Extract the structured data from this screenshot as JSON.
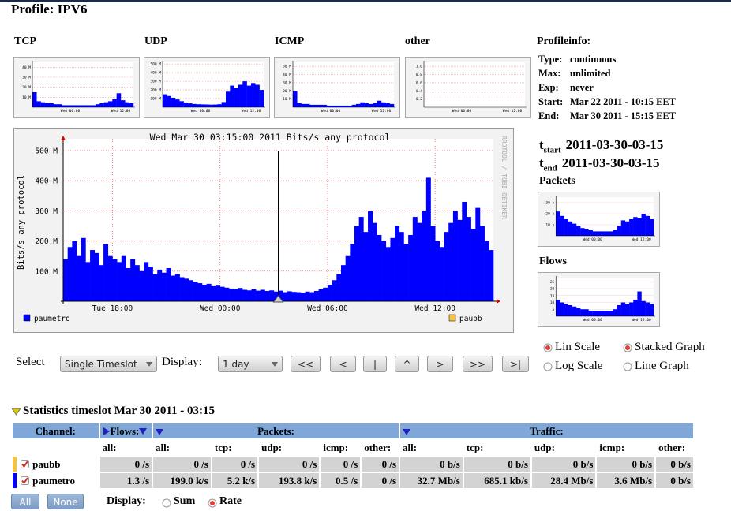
{
  "title": "Profile: IPV6",
  "thumbnails": [
    {
      "label": "TCP",
      "color": "#0000ff",
      "ylim": [
        0,
        45000000.0
      ],
      "yticks": [
        {
          "value": 10000000.0,
          "label": "10 M"
        },
        {
          "value": 20000000.0,
          "label": "20 M"
        },
        {
          "value": 30000000.0,
          "label": "30 M"
        },
        {
          "value": 40000000.0,
          "label": "40 M"
        }
      ],
      "categories": [
        null,
        null,
        null,
        null,
        null,
        null,
        null,
        null,
        null,
        "Wed 00:00",
        null,
        null,
        null,
        null,
        null,
        null,
        null,
        null,
        null,
        null,
        null,
        "Wed 12:00",
        null,
        null
      ],
      "values": [
        15000000.0,
        6000000.0,
        5000000.0,
        4000000.0,
        4000000.0,
        3000000.0,
        3000000.0,
        2000000.0,
        2000000.0,
        2000000.0,
        2000000.0,
        2000000.0,
        2000000.0,
        2000000.0,
        2000000.0,
        3000000.0,
        4000000.0,
        5000000.0,
        6000000.0,
        8000000.0,
        14000000.0,
        7000000.0,
        5000000.0,
        4000000.0
      ]
    },
    {
      "label": "UDP",
      "color": "#0000ff",
      "ylim": [
        0,
        520000000.0
      ],
      "yticks": [
        {
          "value": 100000000.0,
          "label": "100 M"
        },
        {
          "value": 200000000.0,
          "label": "200 M"
        },
        {
          "value": 300000000.0,
          "label": "300 M"
        },
        {
          "value": 400000000.0,
          "label": "400 M"
        },
        {
          "value": 500000000.0,
          "label": "500 M"
        }
      ],
      "categories": [
        null,
        null,
        null,
        null,
        null,
        null,
        null,
        null,
        null,
        "Wed 00:00",
        null,
        null,
        null,
        null,
        null,
        null,
        null,
        null,
        null,
        null,
        null,
        "Wed 12:00",
        null,
        null
      ],
      "values": [
        150000000.0,
        130000000.0,
        110000000.0,
        90000000.0,
        70000000.0,
        55000000.0,
        45000000.0,
        38000000.0,
        35000000.0,
        33000000.0,
        32000000.0,
        30000000.0,
        31000000.0,
        35000000.0,
        60000000.0,
        180000000.0,
        250000000.0,
        220000000.0,
        260000000.0,
        300000000.0,
        250000000.0,
        280000000.0,
        260000000.0,
        200000000.0
      ]
    },
    {
      "label": "ICMP",
      "color": "#0000ff",
      "ylim": [
        0,
        55000000.0
      ],
      "yticks": [
        {
          "value": 10000000.0,
          "label": "10 M"
        },
        {
          "value": 20000000.0,
          "label": "20 M"
        },
        {
          "value": 30000000.0,
          "label": "30 M"
        },
        {
          "value": 40000000.0,
          "label": "40 M"
        },
        {
          "value": 50000000.0,
          "label": "50 M"
        }
      ],
      "categories": [
        null,
        null,
        null,
        null,
        null,
        null,
        null,
        null,
        null,
        "Wed 00:00",
        null,
        null,
        null,
        null,
        null,
        null,
        null,
        null,
        null,
        null,
        null,
        "Wed 12:00",
        null,
        null
      ],
      "values": [
        20000000.0,
        5000000.0,
        4000000.0,
        4000000.0,
        3000000.0,
        3000000.0,
        3000000.0,
        3000000.0,
        2000000.0,
        2000000.0,
        2000000.0,
        2000000.0,
        2000000.0,
        2000000.0,
        3000000.0,
        4000000.0,
        6000000.0,
        5000000.0,
        4000000.0,
        5000000.0,
        8000000.0,
        6000000.0,
        5000000.0,
        4000000.0
      ]
    },
    {
      "label": "other",
      "color": "#0000ff",
      "ylim": [
        0,
        1.1
      ],
      "yticks": [
        0.2,
        0.4,
        0.6,
        0.8,
        {
          "value": 1,
          "label": "1.0"
        }
      ],
      "categories": [
        null,
        null,
        null,
        null,
        null,
        null,
        null,
        null,
        null,
        "Wed 00:00",
        null,
        null,
        null,
        null,
        null,
        null,
        null,
        null,
        null,
        null,
        null,
        "Wed 12:00",
        null,
        null
      ],
      "values": [
        0,
        0,
        0,
        0,
        0,
        0,
        0,
        0,
        0,
        0,
        0,
        0,
        0,
        0,
        0,
        0,
        0,
        0,
        0,
        0,
        0,
        0,
        0,
        0
      ]
    },
    {
      "label": "Packets",
      "color": "#0000ff",
      "ylim": [
        0,
        35000
      ],
      "yticks": [
        {
          "value": 10000,
          "label": "10 k"
        },
        {
          "value": 20000,
          "label": "20 k"
        },
        {
          "value": 30000,
          "label": "30 k"
        }
      ],
      "categories": [
        null,
        null,
        null,
        null,
        null,
        null,
        null,
        null,
        null,
        "Wed 00:00",
        null,
        null,
        null,
        null,
        null,
        null,
        null,
        null,
        null,
        null,
        null,
        "Wed 12:00",
        null,
        null
      ],
      "values": [
        22000,
        18000,
        15000,
        13000,
        11000,
        9000,
        7000,
        6000,
        5000,
        4000,
        4000,
        4000,
        4000,
        4000,
        5000,
        9000,
        14000,
        13000,
        15000,
        17000,
        16000,
        20000,
        18000,
        15000
      ]
    },
    {
      "label": "Flows",
      "color": "#0000ff",
      "ylim": [
        0,
        28
      ],
      "yticks": [
        5,
        10,
        15,
        20,
        25
      ],
      "categories": [
        null,
        null,
        null,
        null,
        null,
        null,
        null,
        null,
        null,
        "Wed 00:00",
        null,
        null,
        null,
        null,
        null,
        null,
        null,
        null,
        null,
        null,
        null,
        "Wed 12:00",
        null,
        null
      ],
      "values": [
        12,
        10,
        9,
        8,
        7,
        6,
        5,
        5,
        4,
        4,
        4,
        4,
        4,
        4,
        5,
        8,
        10,
        9,
        10,
        12,
        18,
        11,
        10,
        9
      ]
    }
  ],
  "profileinfo": {
    "heading": "Profileinfo:",
    "rows": [
      [
        "Type:",
        "continuous"
      ],
      [
        "Max:",
        "unlimited"
      ],
      [
        "Exp:",
        "never"
      ],
      [
        "Start:",
        "Mar 22 2011 - 10:15 EET"
      ],
      [
        "End:",
        "Mar 30 2011 - 15:15 EET"
      ]
    ]
  },
  "timeslot": [
    {
      "symbol": "t",
      "sub": "start",
      "value": "2011-03-30-03-15"
    },
    {
      "symbol": "t",
      "sub": "end",
      "value": "2011-03-30-03-15"
    }
  ],
  "chart_data": {
    "type": "bar",
    "title": "Wed Mar 30 03:15:00 2011 Bits/s any protocol",
    "y_label": "Bits/s any protocol",
    "watermark": "RRDTOOL / TOBI OETIKER",
    "stacked": true,
    "categories": [
      null,
      null,
      null,
      null,
      null,
      null,
      null,
      null,
      null,
      null,
      null,
      "Tue 18:00",
      null,
      null,
      null,
      null,
      null,
      null,
      null,
      null,
      null,
      null,
      null,
      null,
      null,
      null,
      null,
      null,
      null,
      null,
      null,
      null,
      null,
      null,
      null,
      "Wed 00:00",
      null,
      null,
      null,
      null,
      null,
      null,
      null,
      null,
      null,
      null,
      null,
      null,
      null,
      null,
      null,
      null,
      null,
      null,
      null,
      null,
      null,
      null,
      null,
      "Wed 06:00",
      null,
      null,
      null,
      null,
      null,
      null,
      null,
      null,
      null,
      null,
      null,
      null,
      null,
      null,
      null,
      null,
      null,
      null,
      null,
      null,
      null,
      null,
      null,
      "Wed 12:00",
      null,
      null,
      null,
      null,
      null,
      null,
      null,
      null,
      null,
      null,
      null,
      null
    ],
    "series": [
      {
        "name": "paumetro",
        "color": "#0000ff",
        "values": [
          140000000.0,
          180000000.0,
          200000000.0,
          150000000.0,
          210000000.0,
          130000000.0,
          170000000.0,
          160000000.0,
          120000000.0,
          190000000.0,
          150000000.0,
          140000000.0,
          130000000.0,
          150000000.0,
          110000000.0,
          140000000.0,
          120000000.0,
          100000000.0,
          130000000.0,
          115000000.0,
          90000000.0,
          105000000.0,
          95000000.0,
          110000000.0,
          85000000.0,
          90000000.0,
          80000000.0,
          75000000.0,
          70000000.0,
          65000000.0,
          60000000.0,
          55000000.0,
          58000000.0,
          50000000.0,
          52000000.0,
          48000000.0,
          45000000.0,
          42000000.0,
          40000000.0,
          44000000.0,
          38000000.0,
          36000000.0,
          40000000.0,
          35000000.0,
          38000000.0,
          34000000.0,
          36000000.0,
          32000000.0,
          35000000.0,
          30000000.0,
          33000000.0,
          31000000.0,
          30000000.0,
          28000000.0,
          32000000.0,
          30000000.0,
          34000000.0,
          40000000.0,
          45000000.0,
          55000000.0,
          70000000.0,
          90000000.0,
          120000000.0,
          150000000.0,
          190000000.0,
          250000000.0,
          280000000.0,
          230000000.0,
          300000000.0,
          260000000.0,
          220000000.0,
          200000000.0,
          180000000.0,
          210000000.0,
          250000000.0,
          230000000.0,
          190000000.0,
          220000000.0,
          280000000.0,
          260000000.0,
          300000000.0,
          410000000.0,
          250000000.0,
          200000000.0,
          180000000.0,
          230000000.0,
          260000000.0,
          300000000.0,
          270000000.0,
          330000000.0,
          280000000.0,
          240000000.0,
          310000000.0,
          250000000.0,
          200000000.0,
          170000000.0
        ]
      },
      {
        "name": "paubb",
        "color": "#f5c242",
        "values": [
          0,
          0,
          0,
          0,
          0,
          0,
          0,
          0,
          0,
          0,
          0,
          0,
          0,
          0,
          0,
          0,
          0,
          0,
          0,
          0,
          0,
          0,
          0,
          0,
          0,
          0,
          0,
          0,
          0,
          0,
          0,
          0,
          0,
          0,
          0,
          0,
          0,
          0,
          0,
          0,
          0,
          0,
          0,
          0,
          0,
          0,
          0,
          0,
          0,
          0,
          0,
          0,
          0,
          0,
          0,
          0,
          0,
          0,
          0,
          0,
          0,
          0,
          0,
          0,
          0,
          0,
          0,
          0,
          0,
          0,
          0,
          0,
          0,
          0,
          0,
          0,
          0,
          0,
          0,
          0,
          0,
          0,
          0,
          0,
          0,
          0,
          0,
          0,
          0,
          0,
          0,
          0,
          0,
          0,
          0,
          0
        ]
      }
    ],
    "ylim": [
      0,
      520000000.0
    ],
    "yticks": [
      {
        "value": 100000000.0,
        "label": "100 M"
      },
      {
        "value": 200000000.0,
        "label": "200 M"
      },
      {
        "value": 300000000.0,
        "label": "300 M"
      },
      {
        "value": 400000000.0,
        "label": "400 M"
      },
      {
        "value": 500000000.0,
        "label": "500 M"
      }
    ],
    "grid": true
  },
  "controls": {
    "select_label": "Select",
    "select_value": "Single Timeslot",
    "display_label": "Display:",
    "display_value": "1 day",
    "buttons": [
      "<<",
      "<",
      "|",
      "^",
      ">",
      ">>",
      ">|"
    ],
    "radios": [
      {
        "label": "Lin Scale",
        "checked": true
      },
      {
        "label": "Stacked Graph",
        "checked": true
      },
      {
        "label": "Log Scale",
        "checked": false
      },
      {
        "label": "Line Graph",
        "checked": false
      }
    ]
  },
  "statistics": {
    "heading": "Statistics timeslot Mar 30 2011 - 03:15",
    "groups": [
      "Channel:",
      "Flows:",
      "Packets:",
      "Traffic:"
    ],
    "columns": [
      "all:",
      "all:",
      "tcp:",
      "udp:",
      "icmp:",
      "other:",
      "all:",
      "tcp:",
      "udp:",
      "icmp:",
      "other:"
    ],
    "rows": [
      {
        "name": "paubb",
        "color": "#f5c242",
        "cells": [
          "0 /s",
          "0 /s",
          "0 /s",
          "0 /s",
          "0 /s",
          "0 /s",
          "0 b/s",
          "0 b/s",
          "0 b/s",
          "0 b/s",
          "0 b/s"
        ]
      },
      {
        "name": "paumetro",
        "color": "#0000ff",
        "cells": [
          "1.3 /s",
          "199.0 k/s",
          "5.2 k/s",
          "193.8 k/s",
          "0.5 /s",
          "0 /s",
          "32.7 Mb/s",
          "685.1 kb/s",
          "28.4 Mb/s",
          "3.6 Mb/s",
          "0 b/s"
        ]
      }
    ],
    "buttons": [
      "All",
      "None"
    ],
    "display_label": "Display:",
    "display_options": [
      {
        "label": "Sum",
        "checked": false
      },
      {
        "label": "Rate",
        "checked": true
      }
    ]
  }
}
